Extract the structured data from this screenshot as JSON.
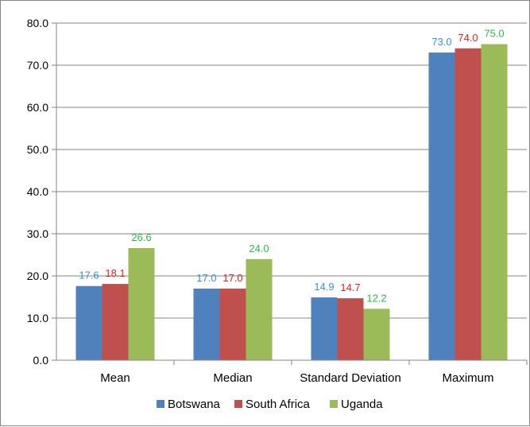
{
  "chart_data": {
    "type": "bar",
    "categories": [
      "Mean",
      "Median",
      "Standard Deviation",
      "Maximum"
    ],
    "series": [
      {
        "name": "Botswana",
        "values": [
          17.6,
          17.0,
          14.9,
          73.0
        ],
        "labels": [
          "17.6",
          "17.0",
          "14.9",
          "73.0"
        ],
        "color": "#4F81BD",
        "label_color": "#3A8FD8"
      },
      {
        "name": "South Africa",
        "values": [
          18.1,
          17.0,
          14.7,
          74.0
        ],
        "labels": [
          "18.1",
          "17.0",
          "14.7",
          "74.0"
        ],
        "color": "#C0504D",
        "label_color": "#E0201B"
      },
      {
        "name": "Uganda",
        "values": [
          26.6,
          24.0,
          12.2,
          75.0
        ],
        "labels": [
          "26.6",
          "24.0",
          "12.2",
          "75.0"
        ],
        "color": "#9BBB59",
        "label_color": "#2DB84A"
      }
    ],
    "ylim": [
      0,
      80
    ],
    "yticks": [
      "0.0",
      "10.0",
      "20.0",
      "30.0",
      "40.0",
      "50.0",
      "60.0",
      "70.0",
      "80.0"
    ],
    "title": "",
    "xlabel": "",
    "ylabel": "",
    "legend": "bottom",
    "grid": true
  }
}
